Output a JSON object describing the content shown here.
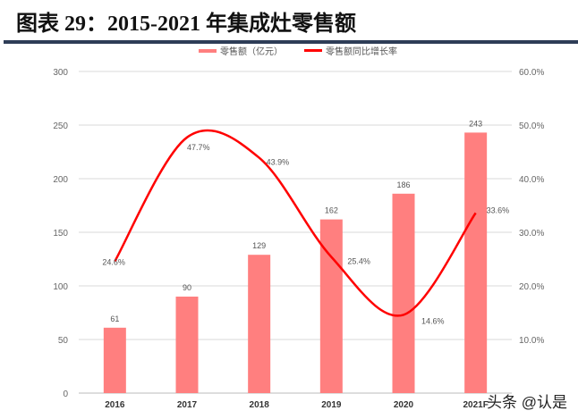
{
  "title": "图表 29：2015-2021 年集成灶零售额",
  "watermark": "头条 @认是",
  "chart_data": {
    "type": "bar+line",
    "categories": [
      "2016",
      "2017",
      "2018",
      "2019",
      "2020",
      "2021F"
    ],
    "series": [
      {
        "name": "零售额（亿元）",
        "type": "bar",
        "axis": "left",
        "color": "#ff7f7f",
        "values": [
          61,
          90,
          129,
          162,
          186,
          243
        ]
      },
      {
        "name": "零售额同比增长率",
        "type": "line",
        "axis": "right",
        "color": "#ff0000",
        "values": [
          24.6,
          47.7,
          43.9,
          25.4,
          14.6,
          33.6
        ],
        "labels": [
          "24.6%",
          "47.7%",
          "43.9%",
          "25.4%",
          "14.6%",
          "33.6%"
        ]
      }
    ],
    "left_axis": {
      "ylim": [
        0,
        300
      ],
      "ticks": [
        "0",
        "50",
        "100",
        "150",
        "200",
        "250",
        "300"
      ]
    },
    "right_axis": {
      "ylim": [
        0,
        60
      ],
      "ticks": [
        "0.0%",
        "10.0%",
        "20.0%",
        "30.0%",
        "40.0%",
        "50.0%",
        "60.0%"
      ]
    },
    "grid": true,
    "legend": "top"
  }
}
